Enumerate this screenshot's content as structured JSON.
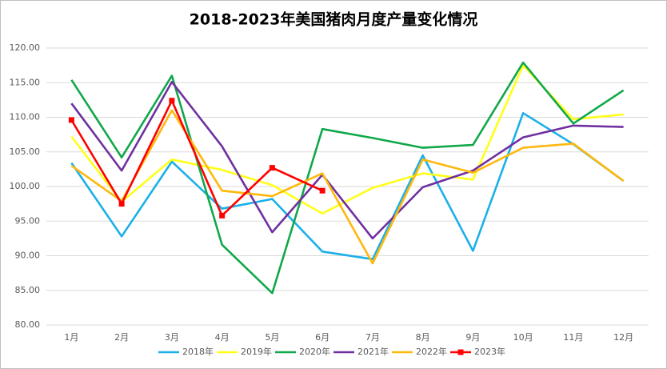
{
  "chart_data": {
    "type": "line",
    "title": "2018-2023年美国猪肉月度产量变化情况",
    "categories": [
      "1月",
      "2月",
      "3月",
      "4月",
      "5月",
      "6月",
      "7月",
      "8月",
      "9月",
      "10月",
      "11月",
      "12月"
    ],
    "series": [
      {
        "name": "2018年",
        "color": "#1cb0e8",
        "values": [
          103.4,
          92.8,
          103.6,
          96.8,
          98.2,
          90.6,
          89.5,
          104.5,
          90.7,
          110.6,
          106.1,
          100.8
        ]
      },
      {
        "name": "2019年",
        "color": "#ffff1a",
        "values": [
          107.2,
          97.8,
          103.9,
          102.4,
          100.2,
          96.1,
          99.8,
          101.9,
          101.0,
          117.5,
          109.7,
          110.4
        ]
      },
      {
        "name": "2020年",
        "color": "#10a84a",
        "values": [
          115.4,
          104.2,
          116.0,
          91.6,
          84.6,
          108.3,
          107.0,
          105.6,
          106.0,
          117.9,
          109.1,
          113.9
        ]
      },
      {
        "name": "2021年",
        "color": "#7030a0",
        "values": [
          112.0,
          102.3,
          115.1,
          105.8,
          93.4,
          101.7,
          92.5,
          99.9,
          102.3,
          107.1,
          108.8,
          108.6
        ]
      },
      {
        "name": "2022年",
        "color": "#ffb80d",
        "values": [
          103.0,
          97.9,
          111.0,
          99.4,
          98.6,
          101.9,
          88.9,
          103.9,
          102.0,
          105.6,
          106.2,
          100.8
        ]
      },
      {
        "name": "2023年",
        "color": "#ff0000",
        "marker": "square",
        "values": [
          109.6,
          97.5,
          112.4,
          95.8,
          102.7,
          99.4,
          null,
          null,
          null,
          null,
          null,
          null
        ]
      }
    ],
    "ylim": [
      80,
      120
    ],
    "yticks": [
      {
        "value": 80,
        "label": "80.00"
      },
      {
        "value": 85,
        "label": "85.00"
      },
      {
        "value": 90,
        "label": "90.00"
      },
      {
        "value": 95,
        "label": "95.00"
      },
      {
        "value": 100,
        "label": "100.00"
      },
      {
        "value": 105,
        "label": "105.00"
      },
      {
        "value": 110,
        "label": "110.00"
      },
      {
        "value": 115,
        "label": "115.00"
      },
      {
        "value": 120,
        "label": "120.00"
      }
    ],
    "grid": true,
    "legend": "bottom"
  }
}
